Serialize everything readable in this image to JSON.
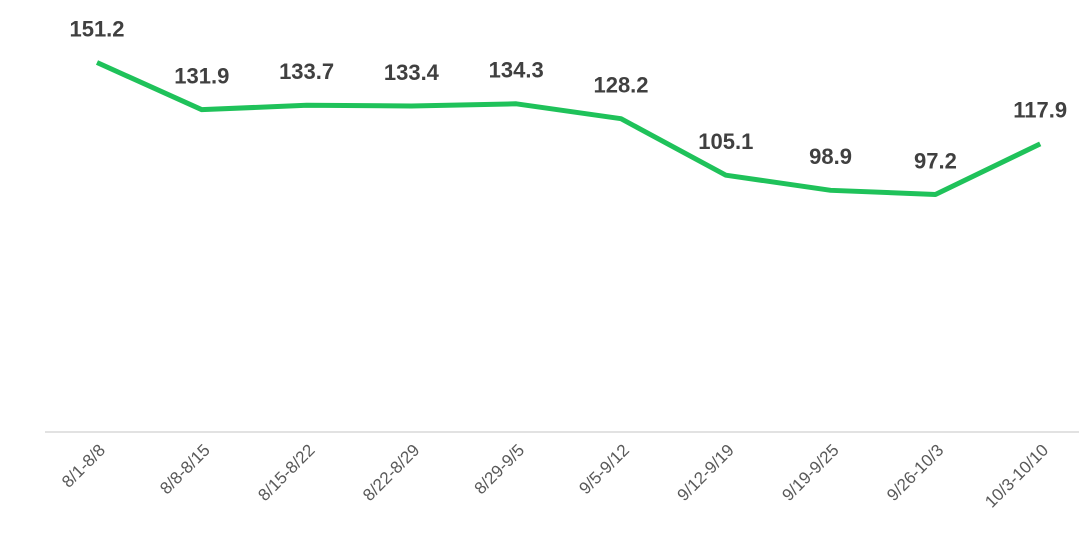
{
  "chart_data": {
    "type": "line",
    "categories": [
      "8/1-8/8",
      "8/8-8/15",
      "8/15-8/22",
      "8/22-8/29",
      "8/29-9/5",
      "9/5-9/12",
      "9/12-9/19",
      "9/19-9/25",
      "9/26-10/3",
      "10/3-10/10"
    ],
    "values": [
      151.2,
      131.9,
      133.7,
      133.4,
      134.3,
      128.2,
      105.1,
      98.9,
      97.2,
      117.9
    ],
    "color": "#1fc25a",
    "ylim": [
      0,
      160
    ]
  }
}
